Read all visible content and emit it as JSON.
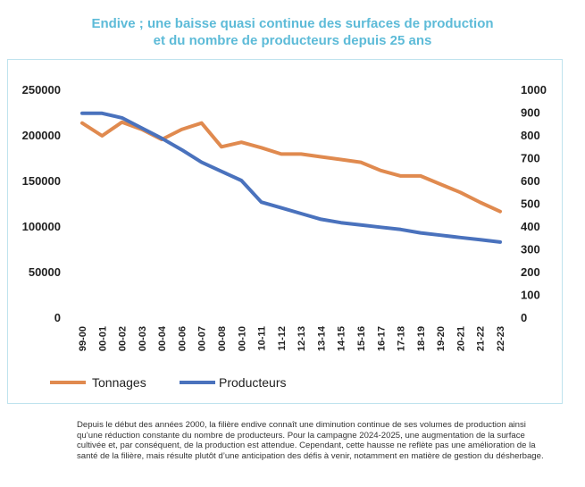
{
  "header": {
    "title_line1": "Endive ; une baisse quasi continue des surfaces de production",
    "title_line2": "et du nombre de producteurs depuis 25 ans"
  },
  "chart_data": {
    "type": "line",
    "title": "Endive ; une baisse quasi continue des surfaces de production et du nombre de producteurs depuis 25 ans",
    "categories": [
      "99-00",
      "00-01",
      "00-02",
      "00-03",
      "00-04",
      "00-06",
      "00-07",
      "00-08",
      "00-10",
      "10-11",
      "11-12",
      "12-13",
      "13-14",
      "14-15",
      "15-16",
      "16-17",
      "17-18",
      "18-19",
      "19-20",
      "20-21",
      "21-22",
      "22-23"
    ],
    "y_left": {
      "min": 0,
      "max": 250000,
      "ticks": [
        0,
        50000,
        100000,
        150000,
        200000,
        250000
      ]
    },
    "y_right": {
      "min": 0,
      "max": 1000,
      "ticks": [
        0,
        100,
        200,
        300,
        400,
        500,
        600,
        700,
        800,
        900,
        1000
      ]
    },
    "grid": false,
    "legend_position": "bottom-left",
    "series": [
      {
        "name": "Tonnages",
        "axis": "left",
        "color": "#e08a4f",
        "values": [
          213000,
          199000,
          214000,
          206000,
          195000,
          206000,
          213000,
          187000,
          192000,
          186000,
          179000,
          179000,
          176000,
          173000,
          170000,
          161000,
          155000,
          155000,
          146000,
          137000,
          126000,
          116000
        ]
      },
      {
        "name": "Producteurs",
        "axis": "right",
        "color": "#4a72bd",
        "values": [
          895,
          895,
          875,
          830,
          785,
          735,
          680,
          640,
          600,
          505,
          480,
          455,
          430,
          415,
          405,
          395,
          385,
          370,
          360,
          350,
          340,
          330
        ]
      }
    ]
  },
  "caption": {
    "text": "Depuis le début des années 2000, la filière endive connaît une diminution continue de ses volumes de production ainsi qu’une réduction constante du nombre de producteurs. Pour la campagne 2024-2025, une augmentation de la surface cultivée et, par conséquent, de la production est attendue. Cependant, cette hausse ne reflète pas une amélioration de la santé de la filière, mais résulte plutôt d’une anticipation des défis à venir, notamment en matière de gestion du désherbage."
  }
}
